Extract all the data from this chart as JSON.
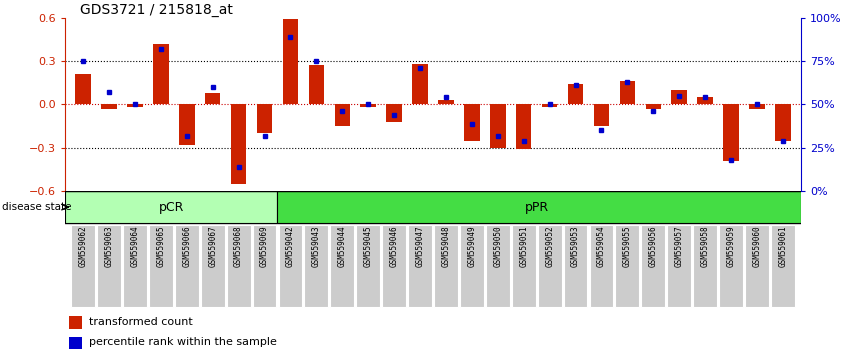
{
  "title": "GDS3721 / 215818_at",
  "samples": [
    "GSM559062",
    "GSM559063",
    "GSM559064",
    "GSM559065",
    "GSM559066",
    "GSM559067",
    "GSM559068",
    "GSM559069",
    "GSM559042",
    "GSM559043",
    "GSM559044",
    "GSM559045",
    "GSM559046",
    "GSM559047",
    "GSM559048",
    "GSM559049",
    "GSM559050",
    "GSM559051",
    "GSM559052",
    "GSM559053",
    "GSM559054",
    "GSM559055",
    "GSM559056",
    "GSM559057",
    "GSM559058",
    "GSM559059",
    "GSM559060",
    "GSM559061"
  ],
  "transformed_count": [
    0.21,
    -0.03,
    -0.02,
    0.42,
    -0.28,
    0.08,
    -0.55,
    -0.2,
    0.59,
    0.27,
    -0.15,
    -0.02,
    -0.12,
    0.28,
    0.03,
    -0.25,
    -0.3,
    -0.31,
    -0.02,
    0.14,
    -0.15,
    0.16,
    -0.03,
    0.1,
    0.05,
    -0.39,
    -0.03,
    -0.25
  ],
  "percentile_rank": [
    75,
    57,
    50,
    82,
    32,
    60,
    14,
    32,
    89,
    75,
    46,
    50,
    44,
    71,
    54,
    39,
    32,
    29,
    50,
    61,
    35,
    63,
    46,
    55,
    54,
    18,
    50,
    29
  ],
  "pCR_count": 8,
  "pPR_count": 20,
  "ylim": [
    -0.6,
    0.6
  ],
  "yticks_left": [
    -0.6,
    -0.3,
    0.0,
    0.3,
    0.6
  ],
  "yticks_right": [
    0,
    25,
    50,
    75,
    100
  ],
  "bar_color": "#cc2200",
  "dot_color": "#0000cc",
  "pCR_color": "#b3ffb3",
  "pPR_color": "#44dd44",
  "label_bg_color": "#cccccc",
  "hline_color": "#cc0000",
  "legend_bar": "transformed count",
  "legend_dot": "percentile rank within the sample",
  "bg_color": "#ffffff"
}
